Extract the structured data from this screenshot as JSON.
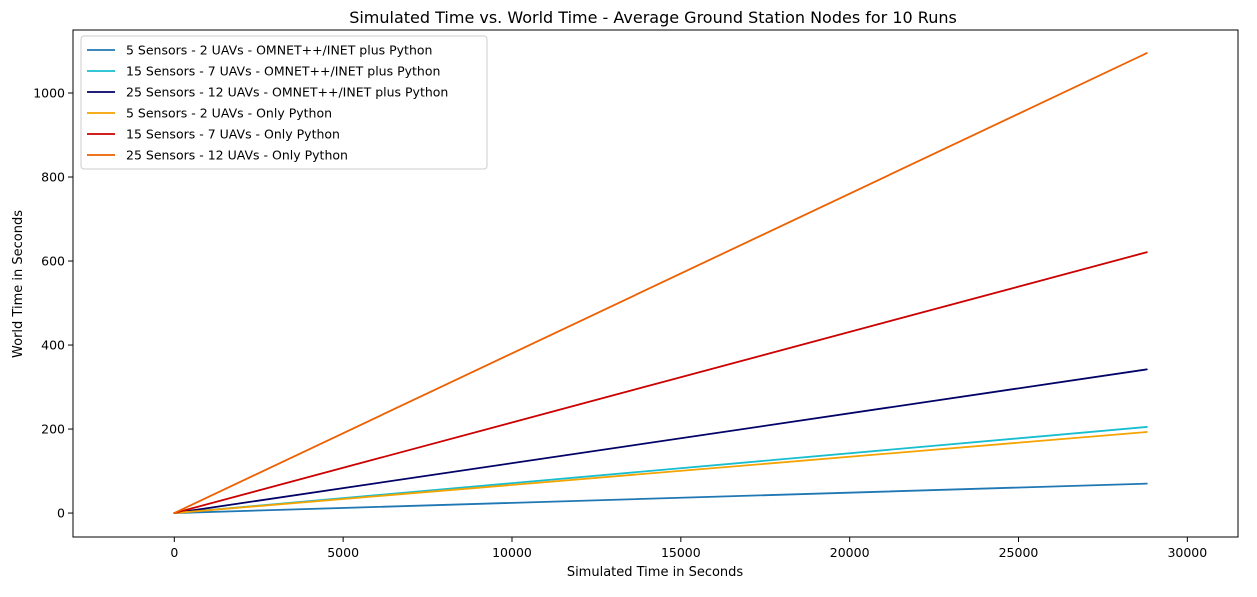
{
  "chart_data": {
    "type": "line",
    "title": "Simulated Time vs. World Time - Average Ground Station Nodes for 10 Runs",
    "xlabel": "Simulated Time in Seconds",
    "ylabel": "World Time in Seconds",
    "xlim": [
      -3000,
      31500
    ],
    "ylim": [
      -57,
      1150
    ],
    "xticks": [
      0,
      5000,
      10000,
      15000,
      20000,
      25000,
      30000
    ],
    "xtick_labels": [
      "0",
      "5000",
      "10000",
      "15000",
      "20000",
      "25000",
      "30000"
    ],
    "yticks": [
      0,
      200,
      400,
      600,
      800,
      1000
    ],
    "ytick_labels": [
      "0",
      "200",
      "400",
      "600",
      "800",
      "1000"
    ],
    "grid": false,
    "legend_position": "top-left",
    "series": [
      {
        "name": "5 Sensors - 2 UAVs - OMNET++/INET plus Python",
        "color": "#1f77b4",
        "x": [
          0,
          28800
        ],
        "y": [
          0,
          70
        ]
      },
      {
        "name": "15 Sensors - 7 UAVs - OMNET++/INET plus Python",
        "color": "#17becf",
        "x": [
          0,
          28800
        ],
        "y": [
          0,
          205
        ]
      },
      {
        "name": "25 Sensors - 12 UAVs - OMNET++/INET plus Python",
        "color": "#000066",
        "x": [
          0,
          28800
        ],
        "y": [
          0,
          342
        ]
      },
      {
        "name": "5 Sensors - 2 UAVs - Only Python",
        "color": "#f5a300",
        "x": [
          0,
          28800
        ],
        "y": [
          0,
          193
        ]
      },
      {
        "name": "15 Sensors - 7 UAVs - Only Python",
        "color": "#cc0000",
        "x": [
          0,
          28800
        ],
        "y": [
          0,
          621
        ]
      },
      {
        "name": "25 Sensors - 12 UAVs - Only Python",
        "color": "#ee6000",
        "x": [
          0,
          28800
        ],
        "y": [
          0,
          1095
        ]
      }
    ]
  }
}
